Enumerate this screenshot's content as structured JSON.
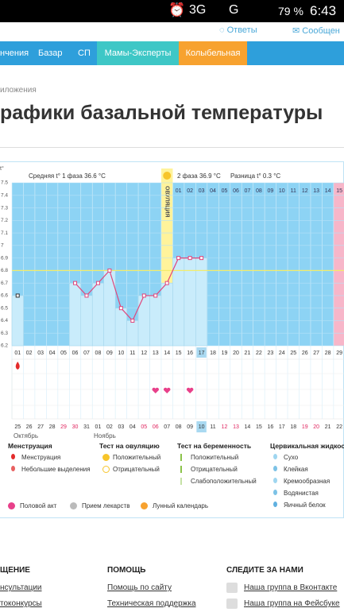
{
  "status_bar": {
    "network": "3G",
    "network2": "G",
    "battery": "79 %",
    "time": "6:43"
  },
  "top_links": [
    "Ответы",
    "Сообщен"
  ],
  "nav": [
    "нчения",
    "Базар",
    "СП",
    "Мамы-Эксперты",
    "Колыбельная"
  ],
  "breadcrumb": "иложения",
  "title": "рафики базальной температуры",
  "chart": {
    "unit": "t°",
    "phase1": "Средняя t° 1 фаза 36.6 °C",
    "phase2": "2 фаза 36.9 °C",
    "difference": "Разница t° 0.3 °C",
    "ylim": [
      6.2,
      7.5
    ],
    "yticks": [
      7.5,
      7.4,
      7.3,
      7.2,
      7.1,
      7,
      6.9,
      6.8,
      6.7,
      6.6,
      6.5,
      6.4,
      6.3,
      6.2
    ],
    "coverline": 6.8,
    "days": [
      "01",
      "02",
      "03",
      "04",
      "05",
      "06",
      "07",
      "08",
      "09",
      "10",
      "11",
      "12",
      "13",
      "14",
      "15",
      "16",
      "17",
      "18",
      "19",
      "20",
      "21",
      "22",
      "23",
      "24",
      "25",
      "26",
      "27",
      "28",
      "29"
    ],
    "values": [
      6.6,
      null,
      null,
      null,
      null,
      6.7,
      6.6,
      6.7,
      6.8,
      6.5,
      6.4,
      6.6,
      6.6,
      6.7,
      6.9,
      6.9,
      6.9,
      null,
      null,
      null,
      null,
      null,
      null,
      null,
      null,
      null,
      null,
      null,
      null
    ],
    "current_day": "17",
    "ovulation": {
      "label": "ОВУЛЯЦИЯ",
      "day": "14"
    },
    "phase2_days": [
      "01",
      "02",
      "03",
      "04",
      "05",
      "06",
      "07",
      "08",
      "09",
      "10",
      "11",
      "12",
      "13",
      "14",
      "15"
    ],
    "menstruation_days": [
      "01"
    ],
    "intercourse_days": [
      "13",
      "14",
      "16"
    ],
    "dates": [
      {
        "label": "25"
      },
      {
        "label": "26"
      },
      {
        "label": "27"
      },
      {
        "label": "28"
      },
      {
        "label": "29",
        "holiday": true
      },
      {
        "label": "30",
        "holiday": true
      },
      {
        "label": "31"
      },
      {
        "label": "01"
      },
      {
        "label": "02"
      },
      {
        "label": "03"
      },
      {
        "label": "04"
      },
      {
        "label": "05",
        "holiday": true
      },
      {
        "label": "06",
        "holiday": true
      },
      {
        "label": "07"
      },
      {
        "label": "08"
      },
      {
        "label": "09"
      },
      {
        "label": "10"
      },
      {
        "label": "11"
      },
      {
        "label": "12",
        "holiday": true
      },
      {
        "label": "13",
        "holiday": true
      },
      {
        "label": "14"
      },
      {
        "label": "15"
      },
      {
        "label": "16"
      },
      {
        "label": "17"
      },
      {
        "label": "18"
      },
      {
        "label": "19",
        "holiday": true
      },
      {
        "label": "20",
        "holiday": true
      },
      {
        "label": "21"
      },
      {
        "label": "22"
      }
    ],
    "current_date": "10",
    "months": [
      "Октябрь",
      "Ноябрь"
    ]
  },
  "legend": [
    {
      "title": "Менструация",
      "items": [
        "Менструация",
        "Небольшие выделения"
      ]
    },
    {
      "title": "Тест на овуляцию",
      "items": [
        "Положительный",
        "Отрицательный"
      ]
    },
    {
      "title": "Тест на беременность",
      "items": [
        "Положительный",
        "Отрицательный",
        "Слабоположительный"
      ]
    },
    {
      "title": "Цервикальная жидкос",
      "items": [
        "Сухо",
        "Клейкая",
        "Кремообразная",
        "Водянистая",
        "Яичный белок"
      ]
    }
  ],
  "extra_legend": [
    "Половой акт",
    "Прием лекарств",
    "Лунный календарь"
  ],
  "footer": [
    {
      "title": "ЩЕНИЕ",
      "items": [
        "нсультации",
        "токонкурсы"
      ]
    },
    {
      "title": "ПОМОЩЬ",
      "items": [
        "Помощь по сайту",
        "Техническая поддержка"
      ]
    },
    {
      "title": "СЛЕДИТЕ ЗА НАМИ",
      "items": [
        "Наша группа в Вконтакте",
        "Наша группа на Фейсбуке"
      ]
    }
  ]
}
